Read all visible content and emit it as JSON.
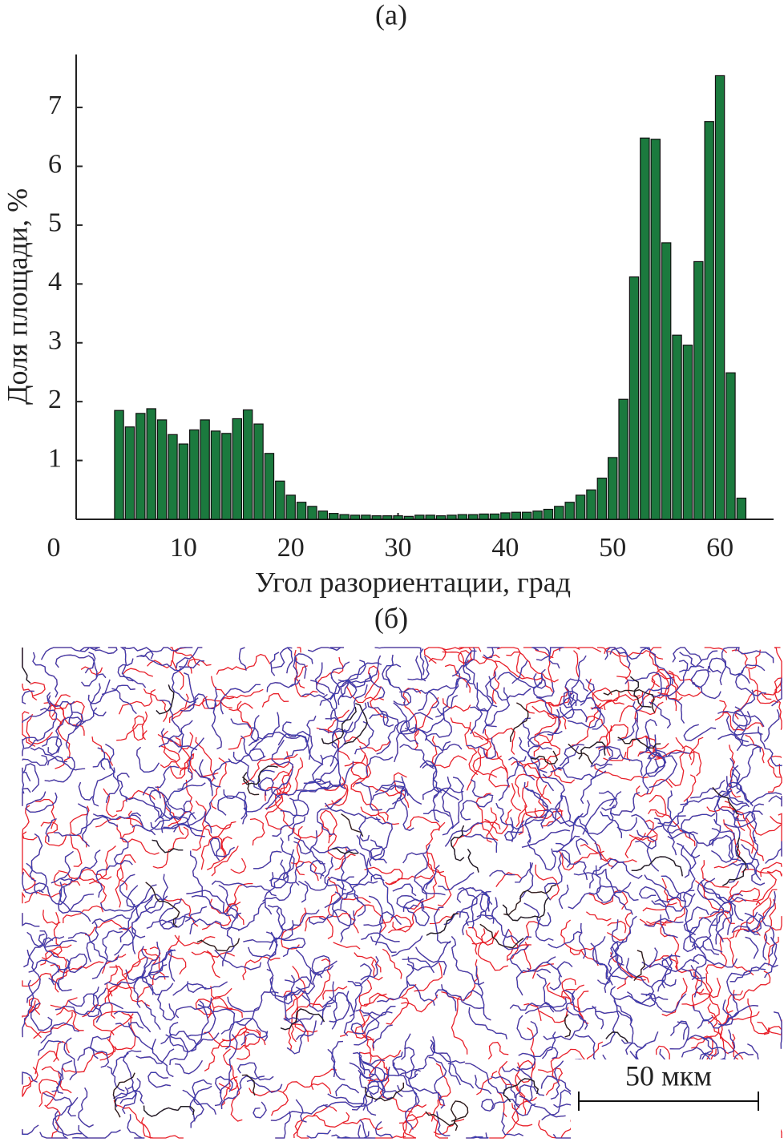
{
  "chart_data": {
    "type": "histogram",
    "title": "(а)",
    "xlabel": "Угол разориентации, град",
    "ylabel": "Доля площади, %",
    "bins": [
      3.5,
      4.5,
      5.5,
      6.5,
      7.5,
      8.5,
      9.5,
      10.5,
      11.5,
      12.5,
      13.5,
      14.5,
      15.5,
      16.5,
      17.5,
      18.5,
      19.5,
      20.5,
      21.5,
      22.5,
      23.5,
      24.5,
      25.5,
      26.5,
      27.5,
      28.5,
      29.5,
      30.5,
      31.5,
      32.5,
      33.5,
      34.5,
      35.5,
      36.5,
      37.5,
      38.5,
      39.5,
      40.5,
      41.5,
      42.5,
      43.5,
      44.5,
      45.5,
      46.5,
      47.5,
      48.5,
      49.5,
      50.5,
      51.5,
      52.5,
      53.5,
      54.5,
      55.5,
      56.5,
      57.5,
      58.5,
      59.5,
      60.5,
      61.5,
      62.5
    ],
    "counts": [
      1.85,
      1.57,
      1.8,
      1.88,
      1.69,
      1.44,
      1.28,
      1.52,
      1.69,
      1.5,
      1.46,
      1.71,
      1.86,
      1.62,
      1.12,
      0.65,
      0.41,
      0.29,
      0.22,
      0.14,
      0.1,
      0.08,
      0.07,
      0.07,
      0.06,
      0.06,
      0.06,
      0.05,
      0.07,
      0.07,
      0.06,
      0.07,
      0.08,
      0.08,
      0.09,
      0.09,
      0.11,
      0.12,
      0.12,
      0.14,
      0.17,
      0.22,
      0.29,
      0.41,
      0.5,
      0.7,
      1.05,
      2.04,
      4.12,
      6.48,
      6.46,
      4.7,
      3.13,
      2.96,
      4.38,
      6.76,
      7.54,
      2.49,
      0.36
    ],
    "color": "#1b7a3e",
    "xlim": [
      0,
      65
    ],
    "ylim": [
      0,
      7.9
    ],
    "xticks": [
      0,
      10,
      20,
      30,
      40,
      50,
      60
    ],
    "yticks": [
      1,
      2,
      3,
      4,
      5,
      6,
      7
    ]
  },
  "micrograph": {
    "label": "(б)",
    "scale_bar": "50 мкм"
  }
}
